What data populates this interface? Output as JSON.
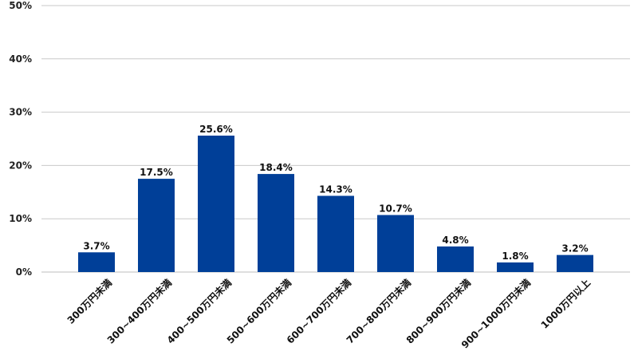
{
  "chart_data": {
    "type": "bar",
    "title": "",
    "xlabel": "",
    "ylabel": "",
    "ylim": [
      0,
      50
    ],
    "yticks": [
      0,
      10,
      20,
      30,
      40,
      50
    ],
    "ytick_labels": [
      "0%",
      "10%",
      "20%",
      "30%",
      "40%",
      "50%"
    ],
    "grid": true,
    "legend": "none",
    "bar_color": "#003f98",
    "categories": [
      "300万円未満",
      "300~400万円未満",
      "400~500万円未満",
      "500~600万円未満",
      "600~700万円未満",
      "700~800万円未満",
      "800~900万円未満",
      "900~1000万円未満",
      "1000万円以上"
    ],
    "values": [
      3.7,
      17.5,
      25.6,
      18.4,
      14.3,
      10.7,
      4.8,
      1.8,
      3.2
    ],
    "data_labels": [
      "3.7%",
      "17.5%",
      "25.6%",
      "18.4%",
      "14.3%",
      "10.7%",
      "4.8%",
      "1.8%",
      "3.2%"
    ]
  }
}
